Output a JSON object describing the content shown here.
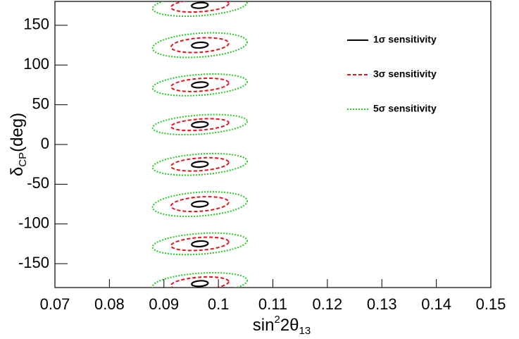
{
  "chart_data": {
    "type": "contour",
    "xlabel": [
      "sin",
      "2",
      "2θ",
      "13"
    ],
    "ylabel": [
      "δ",
      "CP",
      "(deg)"
    ],
    "xlim": [
      0.07,
      0.15
    ],
    "xticks": [
      0.07,
      0.08,
      0.09,
      0.1,
      0.11,
      0.12,
      0.13,
      0.14,
      0.15
    ],
    "ylim": [
      -180,
      180
    ],
    "yticks": [
      -150,
      -100,
      -50,
      0,
      50,
      100,
      150
    ],
    "legend": "top-right",
    "series": [
      {
        "name": "1σ sensitivity",
        "color": "#000000",
        "style": "solid",
        "x": [
          0.0966,
          0.0966,
          0.0966,
          0.0966,
          0.0966,
          0.0966,
          0.0966,
          0.0966
        ],
        "values": [
          175,
          125,
          75,
          25,
          -25,
          -75,
          -125,
          -175
        ],
        "x_halfwidth": [
          0.0015,
          0.0015,
          0.0015,
          0.0015,
          0.0015,
          0.0015,
          0.0015,
          0.0015
        ],
        "y_halfwidth": [
          3.5,
          3.5,
          3.5,
          3.5,
          3.5,
          3.5,
          3.5,
          3.5
        ]
      },
      {
        "name": "3σ sensitivity",
        "color": "#e8141c",
        "style": "dashed",
        "x": [
          0.0966,
          0.0966,
          0.0966,
          0.0966,
          0.0966,
          0.0966,
          0.0966,
          0.0966
        ],
        "values": [
          175,
          125,
          75,
          25,
          -25,
          -75,
          -125,
          -175
        ],
        "x_halfwidth": [
          0.0053,
          0.0053,
          0.0053,
          0.0053,
          0.0053,
          0.0053,
          0.0053,
          0.0053
        ],
        "y_halfwidth": [
          8,
          9,
          8,
          7,
          8,
          9,
          8,
          8
        ]
      },
      {
        "name": "5σ sensitivity",
        "color": "#22cc22",
        "style": "dotted",
        "x": [
          0.0966,
          0.0966,
          0.0966,
          0.0966,
          0.0966,
          0.0966,
          0.0966,
          0.0966
        ],
        "values": [
          175,
          125,
          75,
          25,
          -25,
          -75,
          -125,
          -175
        ],
        "x_halfwidth": [
          0.0087,
          0.0087,
          0.0087,
          0.0087,
          0.0087,
          0.0087,
          0.0087,
          0.0087
        ],
        "y_halfwidth": [
          13,
          15,
          13,
          12,
          13,
          15,
          13,
          13
        ]
      }
    ]
  }
}
